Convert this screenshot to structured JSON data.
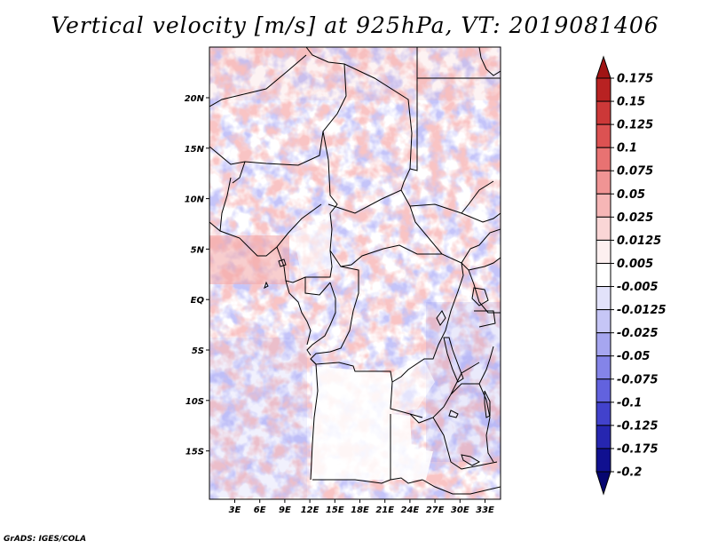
{
  "title": "Vertical velocity [m/s] at 925hPa, VT: 2019081406",
  "credit": "GrADS: IGES/COLA",
  "map": {
    "lon_ticks": [
      "3E",
      "6E",
      "9E",
      "12E",
      "15E",
      "18E",
      "21E",
      "24E",
      "27E",
      "30E",
      "33E"
    ],
    "lat_ticks": [
      "20N",
      "15N",
      "10N",
      "5N",
      "EQ",
      "5S",
      "10S",
      "15S"
    ]
  },
  "colorbar": {
    "levels": [
      "0.175",
      "0.15",
      "0.125",
      "0.1",
      "0.075",
      "0.05",
      "0.025",
      "0.0125",
      "0.005",
      "-0.005",
      "-0.0125",
      "-0.025",
      "-0.05",
      "-0.075",
      "-0.1",
      "-0.125",
      "-0.175",
      "-0.2"
    ],
    "colors": [
      "#a01414",
      "#b82222",
      "#cc3838",
      "#dc5252",
      "#e87272",
      "#f09494",
      "#f6b6b6",
      "#fad6d6",
      "#fdf0f0",
      "#ffffff",
      "#e2e2fa",
      "#c6c6f6",
      "#a6a6f0",
      "#8484e8",
      "#6262de",
      "#4242cc",
      "#2626b0",
      "#101090",
      "#060670"
    ]
  }
}
